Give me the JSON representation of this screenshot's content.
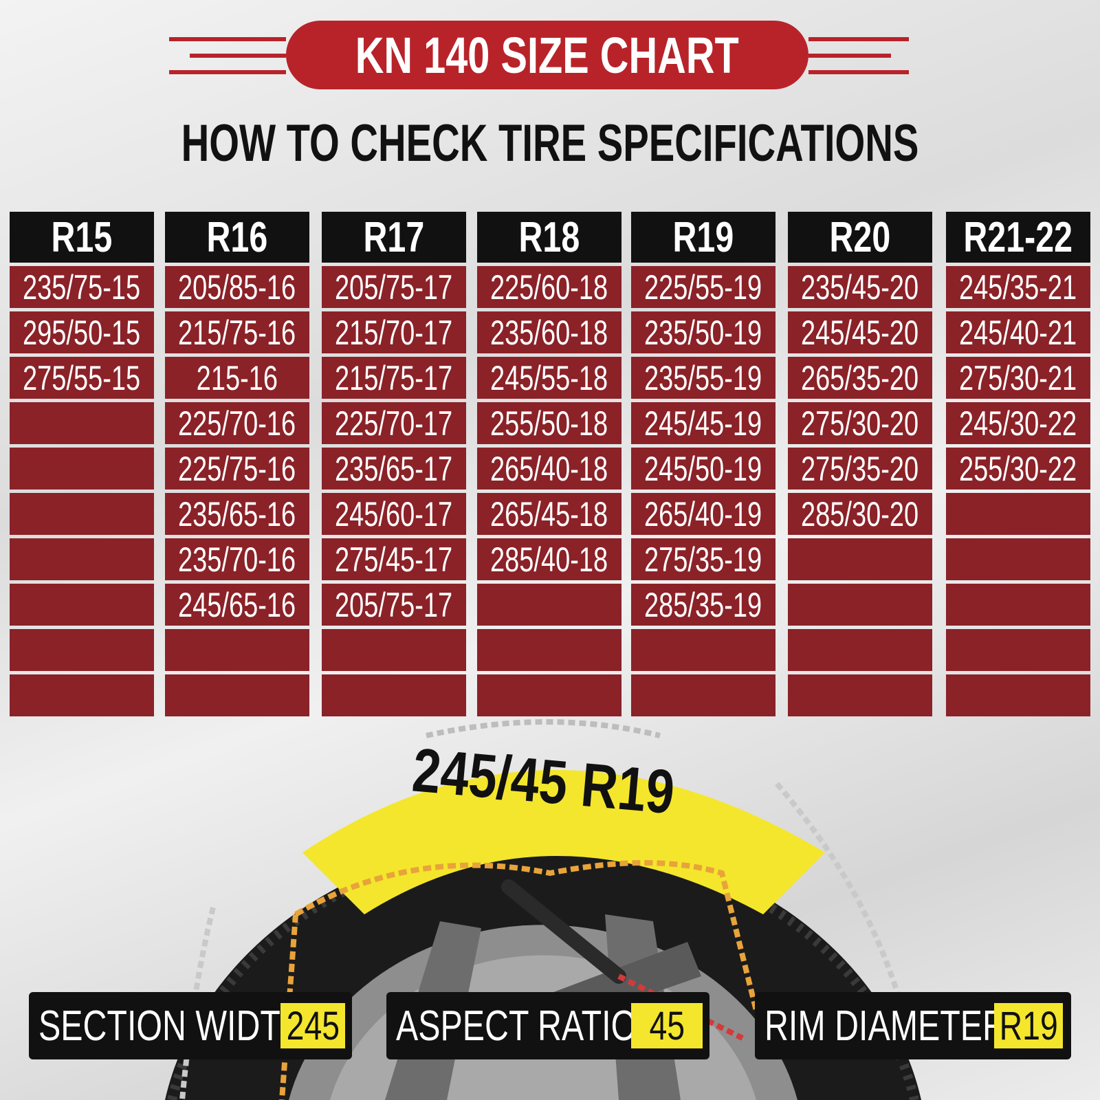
{
  "title": "KN 140 SIZE CHART",
  "subtitle": "HOW TO CHECK TIRE SPECIFICATIONS",
  "colors": {
    "banner_red": "#b8232a",
    "cell_red": "#8a2228",
    "header_black": "#111111",
    "highlight_yellow": "#f4e62c"
  },
  "columns": [
    {
      "header": "R15",
      "sizes": [
        "235/75-15",
        "295/50-15",
        "275/55-15",
        "",
        "",
        "",
        "",
        "",
        "",
        ""
      ]
    },
    {
      "header": "R16",
      "sizes": [
        "205/85-16",
        "215/75-16",
        "215-16",
        "225/70-16",
        "225/75-16",
        "235/65-16",
        "235/70-16",
        "245/65-16",
        "",
        ""
      ]
    },
    {
      "header": "R17",
      "sizes": [
        "205/75-17",
        "215/70-17",
        "215/75-17",
        "225/70-17",
        "235/65-17",
        "245/60-17",
        "275/45-17",
        "205/75-17",
        "",
        ""
      ]
    },
    {
      "header": "R18",
      "sizes": [
        "225/60-18",
        "235/60-18",
        "245/55-18",
        "255/50-18",
        "265/40-18",
        "265/45-18",
        "285/40-18",
        "",
        "",
        ""
      ]
    },
    {
      "header": "R19",
      "sizes": [
        "225/55-19",
        "235/50-19",
        "235/55-19",
        "245/45-19",
        "245/50-19",
        "265/40-19",
        "275/35-19",
        "285/35-19",
        "",
        ""
      ]
    },
    {
      "header": "R20",
      "sizes": [
        "235/45-20",
        "245/45-20",
        "265/35-20",
        "275/30-20",
        "275/35-20",
        "285/30-20",
        "",
        "",
        "",
        ""
      ]
    },
    {
      "header": "R21-22",
      "sizes": [
        "245/35-21",
        "245/40-21",
        "275/30-21",
        "245/30-22",
        "255/30-22",
        "",
        "",
        "",
        "",
        ""
      ]
    }
  ],
  "tire": {
    "size_label": "245/45 R19"
  },
  "legend": [
    {
      "label": "SECTION WIDTH",
      "value": "245"
    },
    {
      "label": "ASPECT RATIO",
      "value": "45"
    },
    {
      "label": "RIM DIAMETER",
      "value": "R19"
    }
  ]
}
